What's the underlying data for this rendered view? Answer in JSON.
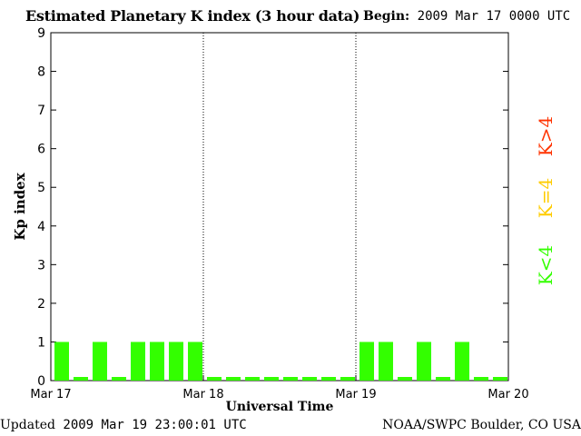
{
  "header": {
    "title": "Estimated Planetary K index (3 hour data)",
    "begin_label": "Begin:",
    "begin_value": "2009 Mar 17 0000 UTC"
  },
  "footer": {
    "updated_label": "Updated",
    "updated_value": "2009 Mar 19 23:00:01 UTC",
    "source": "NOAA/SWPC Boulder, CO USA"
  },
  "legend": [
    {
      "label": "K>4",
      "color": "#ff3300"
    },
    {
      "label": "K=4",
      "color": "#ffcc00"
    },
    {
      "label": "K<4",
      "color": "#33ff00"
    }
  ],
  "chart_data": {
    "type": "bar",
    "title": "Estimated Planetary K index (3 hour data)",
    "xlabel": "Universal Time",
    "ylabel": "Kp index",
    "ylim": [
      0,
      9
    ],
    "yticks": [
      "0",
      "1",
      "2",
      "3",
      "4",
      "5",
      "6",
      "7",
      "8",
      "9"
    ],
    "xticks": [
      "Mar 17",
      "Mar 18",
      "Mar 19",
      "Mar 20"
    ],
    "bin_hours": 3,
    "values": [
      1,
      0,
      1,
      0,
      1,
      1,
      1,
      1,
      0,
      0,
      0,
      0,
      0,
      0,
      0,
      0,
      1,
      1,
      0,
      1,
      0,
      1,
      0,
      0
    ],
    "bar_color": "#33ff00",
    "day_separators": [
      "Mar 18",
      "Mar 19"
    ]
  }
}
